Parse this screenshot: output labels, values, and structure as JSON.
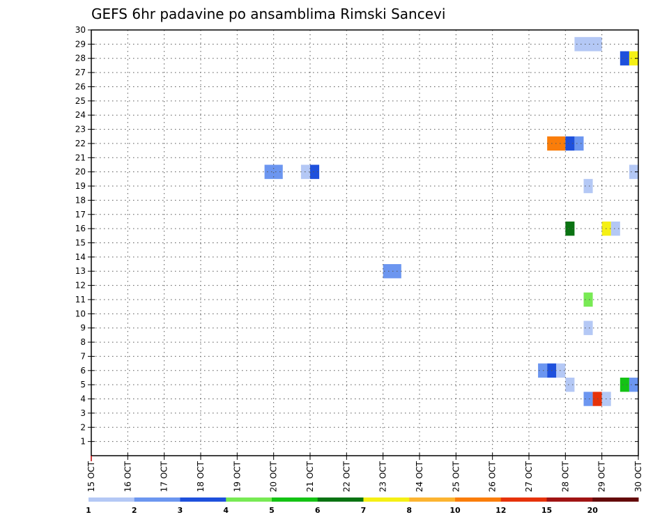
{
  "chart_data": {
    "type": "heatmap",
    "title": "GEFS 6hr padavine po ansamblima Rimski Sancevi",
    "x_labels": [
      "15 OCT",
      "16 OCT",
      "17 OCT",
      "18 OCT",
      "19 OCT",
      "20 OCT",
      "21 OCT",
      "22 OCT",
      "23 OCT",
      "24 OCT",
      "25 OCT",
      "26 OCT",
      "27 OCT",
      "28 OCT",
      "29 OCT",
      "30 OCT"
    ],
    "y_labels": [
      "1",
      "2",
      "3",
      "4",
      "5",
      "6",
      "7",
      "8",
      "9",
      "10",
      "11",
      "12",
      "13",
      "14",
      "15",
      "16",
      "17",
      "18",
      "19",
      "20",
      "21",
      "22",
      "23",
      "24",
      "25",
      "26",
      "27",
      "28",
      "29",
      "30"
    ],
    "ylim": [
      0,
      30
    ],
    "grid": true,
    "legend": {
      "placement": "bottom",
      "labels": [
        "1",
        "2",
        "3",
        "4",
        "5",
        "6",
        "7",
        "8",
        "10",
        "12",
        "15",
        "20"
      ],
      "colors": [
        "#b4c8f5",
        "#6c96f0",
        "#1e50dc",
        "#78ea54",
        "#14c314",
        "#0a7312",
        "#f5f014",
        "#fcb431",
        "#fa7d0a",
        "#e6320a",
        "#a01414",
        "#640a0a"
      ]
    },
    "cells": [
      {
        "day": 13.25,
        "member": 29.0,
        "width": 0.75,
        "color": "#b4c8f5"
      },
      {
        "day": 14.5,
        "member": 28.0,
        "width": 0.25,
        "color": "#1e50dc"
      },
      {
        "day": 14.75,
        "member": 28.0,
        "width": 0.25,
        "color": "#f5f014"
      },
      {
        "day": 12.5,
        "member": 22.0,
        "width": 0.5,
        "color": "#fa7d0a"
      },
      {
        "day": 13.0,
        "member": 22.0,
        "width": 0.25,
        "color": "#1e50dc"
      },
      {
        "day": 13.25,
        "member": 22.0,
        "width": 0.25,
        "color": "#6c96f0"
      },
      {
        "day": 4.75,
        "member": 20.0,
        "width": 0.5,
        "color": "#6c96f0"
      },
      {
        "day": 5.75,
        "member": 20.0,
        "width": 0.25,
        "color": "#b4c8f5"
      },
      {
        "day": 6.0,
        "member": 20.0,
        "width": 0.25,
        "color": "#1e50dc"
      },
      {
        "day": 14.75,
        "member": 20.0,
        "width": 0.25,
        "color": "#b4c8f5"
      },
      {
        "day": 13.5,
        "member": 19.0,
        "width": 0.25,
        "color": "#b4c8f5"
      },
      {
        "day": 13.0,
        "member": 16.0,
        "width": 0.25,
        "color": "#0a7312"
      },
      {
        "day": 14.0,
        "member": 16.0,
        "width": 0.25,
        "color": "#f5f014"
      },
      {
        "day": 14.25,
        "member": 16.0,
        "width": 0.25,
        "color": "#b4c8f5"
      },
      {
        "day": 8.0,
        "member": 13.0,
        "width": 0.5,
        "color": "#6c96f0"
      },
      {
        "day": 13.5,
        "member": 11.0,
        "width": 0.25,
        "color": "#78ea54"
      },
      {
        "day": 13.5,
        "member": 9.0,
        "width": 0.25,
        "color": "#b4c8f5"
      },
      {
        "day": 12.25,
        "member": 6.0,
        "width": 0.25,
        "color": "#6c96f0"
      },
      {
        "day": 12.5,
        "member": 6.0,
        "width": 0.25,
        "color": "#1e50dc"
      },
      {
        "day": 12.75,
        "member": 6.0,
        "width": 0.25,
        "color": "#b4c8f5"
      },
      {
        "day": 13.0,
        "member": 5.0,
        "width": 0.25,
        "color": "#b4c8f5"
      },
      {
        "day": 14.5,
        "member": 5.0,
        "width": 0.25,
        "color": "#14c314"
      },
      {
        "day": 14.75,
        "member": 5.0,
        "width": 0.25,
        "color": "#6c96f0"
      },
      {
        "day": 13.5,
        "member": 4.0,
        "width": 0.25,
        "color": "#6c96f0"
      },
      {
        "day": 13.75,
        "member": 4.0,
        "width": 0.25,
        "color": "#e6320a"
      },
      {
        "day": 14.0,
        "member": 4.0,
        "width": 0.25,
        "color": "#b4c8f5"
      }
    ]
  }
}
